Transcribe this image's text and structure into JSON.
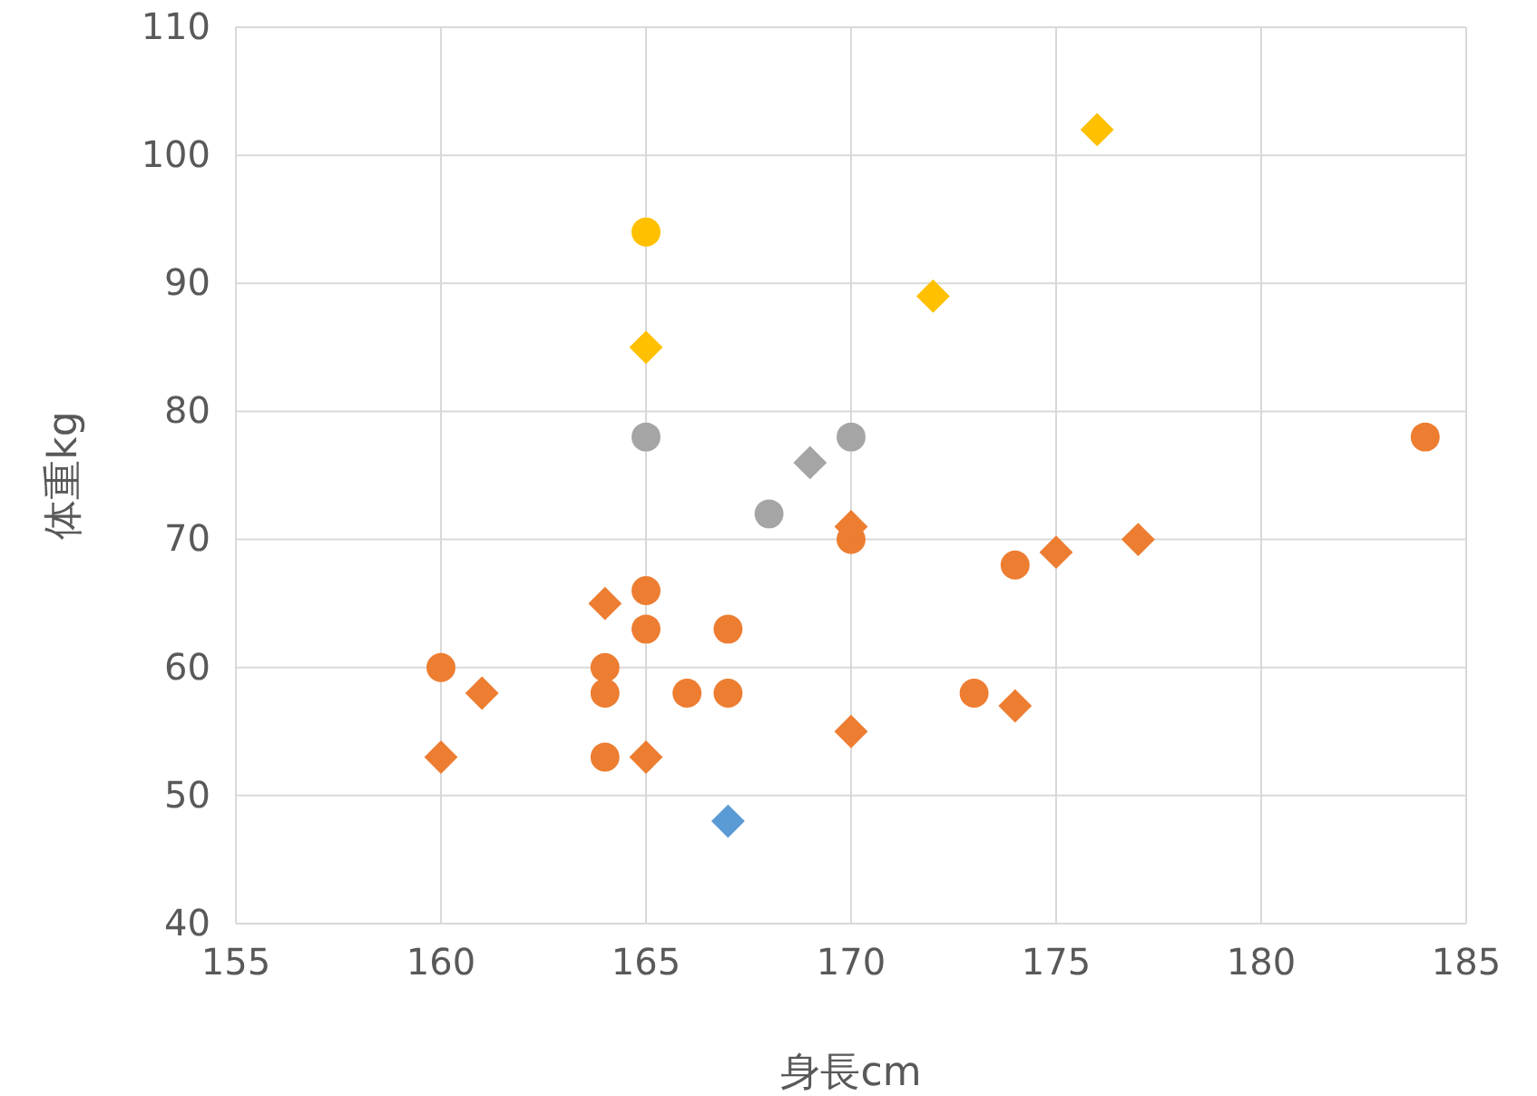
{
  "chart_data": {
    "type": "scatter",
    "xlabel": "身長cm",
    "ylabel": "体重kg",
    "xlim": [
      155,
      185
    ],
    "xticks": [
      155,
      160,
      165,
      170,
      175,
      180,
      185
    ],
    "ylim": [
      40,
      110
    ],
    "yticks": [
      40,
      50,
      60,
      70,
      80,
      90,
      100,
      110
    ],
    "grid": true,
    "series": [
      {
        "color": "#ed7d31",
        "marker": "circle",
        "x": [
          160,
          164,
          164,
          164,
          165,
          165,
          166,
          167,
          167,
          170,
          173,
          174,
          184
        ],
        "values": [
          60,
          60,
          58,
          53,
          66,
          63,
          58,
          63,
          58,
          70,
          58,
          68,
          78
        ]
      },
      {
        "color": "#ed7d31",
        "marker": "diamond",
        "x": [
          160,
          161,
          164,
          165,
          170,
          170,
          174,
          175,
          177
        ],
        "values": [
          53,
          58,
          65,
          53,
          71,
          55,
          57,
          69,
          70
        ]
      },
      {
        "color": "#ffc000",
        "marker": "circle",
        "x": [
          165
        ],
        "values": [
          94
        ]
      },
      {
        "color": "#ffc000",
        "marker": "diamond",
        "x": [
          165,
          172,
          176
        ],
        "values": [
          85,
          89,
          102
        ]
      },
      {
        "color": "#a5a5a5",
        "marker": "circle",
        "x": [
          165,
          168,
          170
        ],
        "values": [
          78,
          72,
          78
        ]
      },
      {
        "color": "#a5a5a5",
        "marker": "diamond",
        "x": [
          169
        ],
        "values": [
          76
        ]
      },
      {
        "color": "#5b9bd5",
        "marker": "diamond",
        "x": [
          167
        ],
        "values": [
          48
        ]
      }
    ]
  }
}
